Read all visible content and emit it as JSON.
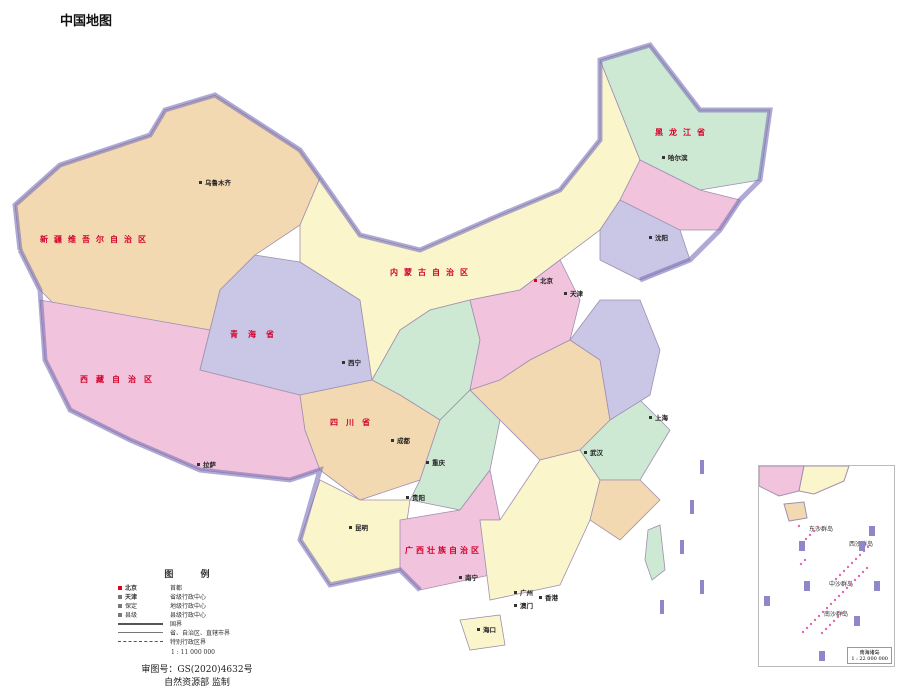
{
  "title": "中国地图",
  "colors": {
    "border": "#7a72b8",
    "sea": "#ffffff",
    "capital": "#e0001b",
    "province_label": "#d4002a",
    "region_fills": [
      "#f3d9b1",
      "#f2c3dc",
      "#c9c6e6",
      "#fbf5cc",
      "#cde8d3"
    ]
  },
  "province_labels": [
    {
      "name": "新疆维吾尔自治区"
    },
    {
      "name": "西藏自治区"
    },
    {
      "name": "青海省"
    },
    {
      "name": "内蒙古自治区"
    },
    {
      "name": "黑龙江省"
    },
    {
      "name": "四川省"
    },
    {
      "name": "广西壮族自治区"
    }
  ],
  "cities": [
    {
      "name": "乌鲁木齐"
    },
    {
      "name": "拉萨"
    },
    {
      "name": "西宁"
    },
    {
      "name": "成都"
    },
    {
      "name": "重庆"
    },
    {
      "name": "昆明"
    },
    {
      "name": "南宁"
    },
    {
      "name": "海口"
    },
    {
      "name": "北京"
    },
    {
      "name": "天津"
    },
    {
      "name": "哈尔滨"
    },
    {
      "name": "武汉"
    },
    {
      "name": "上海"
    },
    {
      "name": "沈阳"
    },
    {
      "name": "贵阳"
    },
    {
      "name": "广州"
    },
    {
      "name": "香港"
    },
    {
      "name": "澳门"
    }
  ],
  "legend": {
    "heading": "图 例",
    "items": [
      {
        "symbol": "北京",
        "label": "首都",
        "icon": "red-square"
      },
      {
        "symbol": "天津",
        "label": "省级行政中心",
        "icon": "dot"
      },
      {
        "symbol": "保定",
        "label": "地级行政中心",
        "icon": "small-dot"
      },
      {
        "symbol": "县级",
        "label": "县级行政中心",
        "icon": "tiny-dot"
      },
      {
        "symbol": "",
        "label": "国界",
        "icon": "border-line"
      },
      {
        "symbol": "",
        "label": "省、自治区、直辖市界",
        "icon": "thin-line"
      },
      {
        "symbol": "",
        "label": "特别行政区界",
        "icon": "dash-line"
      }
    ],
    "scale": "1 : 11 000 000"
  },
  "footer": {
    "approval": "审图号：GS(2020)4632号",
    "publisher": "自然资源部  监制"
  },
  "inset": {
    "title": "南海诸岛",
    "scale": "1 : 22 000 000",
    "labels": [
      "东沙群岛",
      "西沙群岛",
      "中沙群岛",
      "南沙群岛"
    ]
  }
}
